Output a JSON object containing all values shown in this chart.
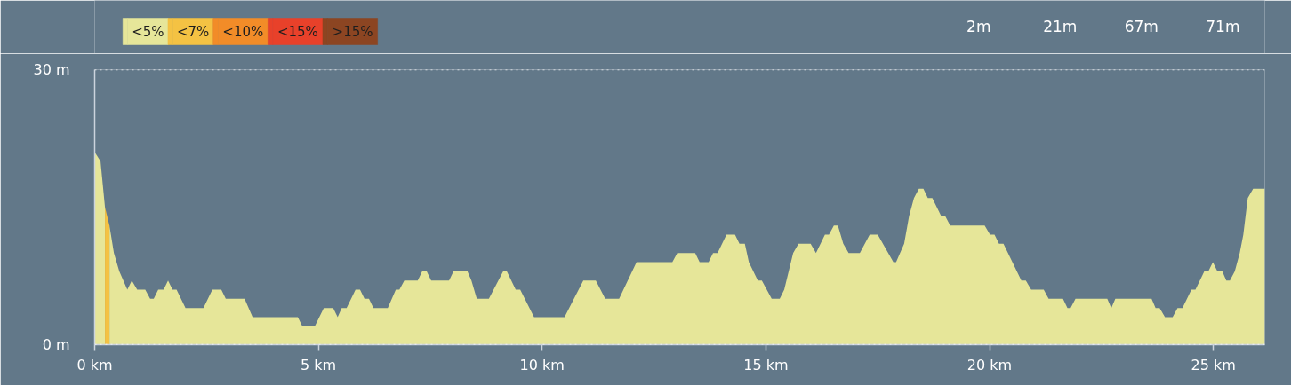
{
  "chart_data": {
    "type": "area",
    "xlim": [
      0,
      26.15
    ],
    "ylim": [
      0,
      30
    ],
    "xticks": [
      {
        "value": 0,
        "label": "0 km"
      },
      {
        "value": 5,
        "label": "5 km"
      },
      {
        "value": 10,
        "label": "10 km"
      },
      {
        "value": 15,
        "label": "15 km"
      },
      {
        "value": 20,
        "label": "20 km"
      },
      {
        "value": 25,
        "label": "25 km"
      }
    ],
    "yticks": [
      {
        "value": 0,
        "label": "0 m"
      },
      {
        "value": 30,
        "label": "30 m"
      }
    ],
    "grid": "y",
    "legend": "top left",
    "annotations": [
      "2m",
      "21m",
      "67m",
      "71m"
    ],
    "series": [
      {
        "name": "<5%",
        "color": "#e6e699",
        "x": [
          0,
          0.13,
          0.23,
          0.28,
          0.33,
          0.43,
          0.55,
          0.73,
          0.83,
          0.95,
          1.13,
          1.24,
          1.32,
          1.42,
          1.54,
          1.64,
          1.74,
          1.83,
          2.03,
          2.43,
          2.63,
          2.83,
          2.93,
          3.35,
          3.53,
          4.54,
          4.64,
          4.92,
          5.12,
          5.33,
          5.43,
          5.52,
          5.63,
          5.83,
          5.93,
          6.03,
          6.13,
          6.23,
          6.55,
          6.73,
          6.81,
          6.92,
          7.22,
          7.32,
          7.42,
          7.52,
          7.92,
          8.02,
          8.33,
          8.42,
          8.54,
          8.81,
          9.13,
          9.21,
          9.41,
          9.51,
          9.82,
          10.5,
          10.92,
          11.2,
          11.41,
          11.72,
          12.11,
          12.91,
          13.02,
          13.42,
          13.52,
          13.72,
          13.82,
          13.92,
          14.12,
          14.31,
          14.41,
          14.53,
          14.62,
          14.82,
          14.91,
          15.13,
          15.31,
          15.41,
          15.61,
          15.73,
          16.0,
          16.12,
          16.32,
          16.41,
          16.52,
          16.61,
          16.73,
          16.85,
          17.1,
          17.32,
          17.5,
          17.85,
          17.91,
          18.09,
          18.2,
          18.31,
          18.42,
          18.52,
          18.62,
          18.72,
          18.92,
          19.01,
          19.12,
          19.89,
          20.01,
          20.11,
          20.21,
          20.31,
          20.71,
          20.81,
          20.93,
          21.21,
          21.32,
          21.64,
          21.74,
          21.81,
          21.92,
          22.63,
          22.72,
          22.81,
          23.62,
          23.71,
          23.8,
          23.92,
          24.09,
          24.2,
          24.31,
          24.51,
          24.6,
          24.8,
          24.89,
          24.99,
          25.09,
          25.2,
          25.29,
          25.37,
          25.48,
          25.59,
          25.67,
          25.77,
          25.89,
          26.15
        ],
        "values": [
          21,
          20,
          15,
          null,
          13,
          10,
          8,
          6,
          7,
          6,
          6,
          5,
          5,
          6,
          6,
          7,
          6,
          6,
          4,
          4,
          6,
          6,
          5,
          5,
          3,
          3,
          2,
          2,
          4,
          4,
          3,
          4,
          4,
          6,
          6,
          5,
          5,
          4,
          4,
          6,
          6,
          7,
          7,
          8,
          8,
          7,
          7,
          8,
          8,
          7,
          5,
          5,
          8,
          8,
          6,
          6,
          3,
          3,
          7,
          7,
          5,
          5,
          9,
          9,
          10,
          10,
          9,
          9,
          10,
          10,
          12,
          12,
          11,
          11,
          9,
          7,
          7,
          5,
          5,
          6,
          10,
          11,
          11,
          10,
          12,
          12,
          13,
          13,
          11,
          10,
          10,
          12,
          12,
          9,
          9,
          11,
          14,
          16,
          17,
          17,
          16,
          16,
          14,
          14,
          13,
          13,
          12,
          12,
          11,
          11,
          7,
          7,
          6,
          6,
          5,
          5,
          4,
          4,
          5,
          5,
          4,
          5,
          5,
          4,
          4,
          3,
          3,
          4,
          4,
          6,
          6,
          8,
          8,
          9,
          8,
          8,
          7,
          7,
          8,
          10,
          12,
          16,
          17,
          17
        ]
      },
      {
        "name": "<7%",
        "color": "#f4c243",
        "x": [
          0.23,
          0.33
        ],
        "values": [
          15,
          13
        ]
      },
      {
        "name": "<10%",
        "color": "#f28c28"
      },
      {
        "name": "<15%",
        "color": "#e8412a"
      },
      {
        "name": ">15%",
        "color": "#8c4522"
      }
    ]
  }
}
